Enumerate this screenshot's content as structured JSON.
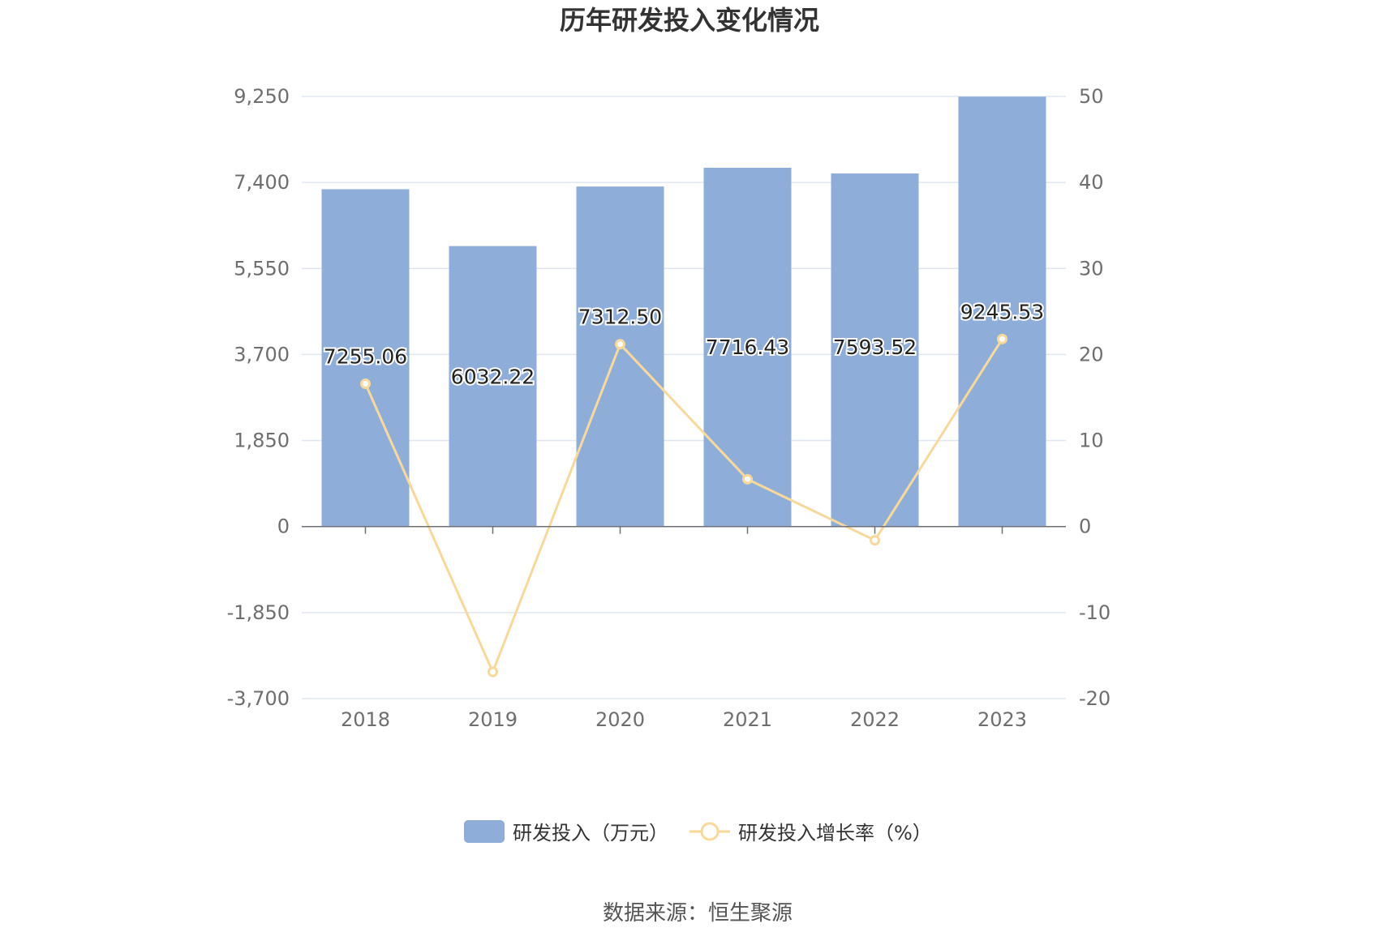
{
  "chart_data": {
    "type": "bar",
    "title": "历年研发投入变化情况",
    "categories": [
      "2018",
      "2019",
      "2020",
      "2021",
      "2022",
      "2023"
    ],
    "series": [
      {
        "name": "研发投入（万元）",
        "type": "bar",
        "axis": "left",
        "values": [
          7255.06,
          6032.22,
          7312.5,
          7716.43,
          7593.52,
          9245.53
        ],
        "labels": [
          "7255.06",
          "6032.22",
          "7312.50",
          "7716.43",
          "7593.52",
          "9245.53"
        ],
        "color": "#8eadd9"
      },
      {
        "name": "研发投入增长率（%）",
        "type": "line",
        "axis": "right",
        "values": [
          16.6,
          -16.9,
          21.2,
          5.5,
          -1.6,
          21.8
        ],
        "color": "#f9d99a"
      }
    ],
    "y_left": {
      "ticks": [
        "9,250",
        "7,400",
        "5,550",
        "3,700",
        "1,850",
        "0",
        "-1,850",
        "-3,700"
      ],
      "range": [
        -3700,
        9250
      ]
    },
    "y_right": {
      "ticks": [
        "50",
        "40",
        "30",
        "20",
        "10",
        "0",
        "-10",
        "-20"
      ],
      "range": [
        -20,
        50
      ]
    },
    "grid": true,
    "legend_position": "bottom"
  },
  "source_text": "数据来源：恒生聚源"
}
